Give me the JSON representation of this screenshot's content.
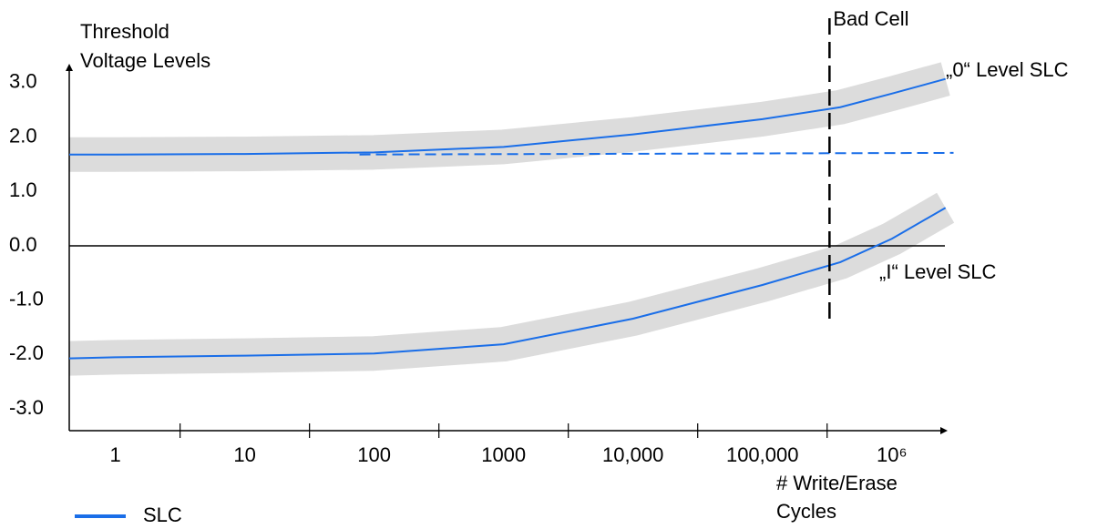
{
  "chart_data": {
    "type": "line",
    "y_label": [
      "Threshold",
      "Voltage Levels"
    ],
    "x_label": [
      "# Write/Erase",
      "Cycles"
    ],
    "xscale": "log",
    "xlim": [
      0.44,
      2700000
    ],
    "ylim": [
      -3.4,
      3.35
    ],
    "xticks": [
      1,
      10,
      100,
      {
        "value": 1000,
        "label": "1000"
      },
      {
        "value": 10000,
        "label": "10,000"
      },
      {
        "value": 100000,
        "label": "100,000"
      },
      {
        "value": 1000000,
        "label": "10⁶"
      }
    ],
    "yticks": [
      {
        "value": 3,
        "label": "3.0"
      },
      {
        "value": 2,
        "label": "2.0"
      },
      {
        "value": 1,
        "label": "1.0"
      },
      {
        "value": 0,
        "label": "0.0"
      },
      {
        "value": -1,
        "label": "-1.0"
      },
      {
        "value": -2,
        "label": "-2.0"
      },
      {
        "value": -3,
        "label": "-3.0"
      }
    ],
    "zero_line": true,
    "series": [
      {
        "name": "SLC",
        "color": "#1a6ee8",
        "x": [
          0.44,
          1,
          10,
          100,
          1000,
          10000,
          100000,
          400000,
          1000000,
          2600000
        ],
        "values": [
          1.68,
          1.68,
          1.69,
          1.72,
          1.82,
          2.05,
          2.33,
          2.55,
          2.8,
          3.07
        ]
      },
      {
        "color": "#1a6ee8",
        "x": [
          0.44,
          1,
          10,
          100,
          1000,
          10000,
          100000,
          400000,
          1000000,
          2600000
        ],
        "values": [
          -2.07,
          -2.05,
          -2.02,
          -1.98,
          -1.81,
          -1.34,
          -0.72,
          -0.3,
          0.13,
          0.7
        ]
      }
    ],
    "band_color": "#dcdcdc",
    "reference_line": {
      "color": "#1a6ee8",
      "style": "dashed",
      "x": [
        77,
        3000000
      ],
      "values": [
        1.68,
        1.71
      ]
    },
    "bad_cell": {
      "label": "Bad Cell",
      "x": 330000
    },
    "annotations": [
      "„0“ Level SLC",
      "„I“ Level SLC"
    ]
  }
}
